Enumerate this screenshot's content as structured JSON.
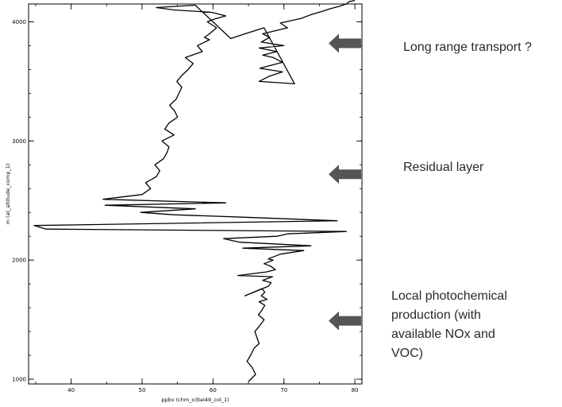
{
  "chart_data": {
    "type": "line",
    "xlabel": "ppbv (chm_o3tei49_col_1)",
    "ylabel": "m (at_altitude_comp_1)",
    "xlim": [
      34,
      81
    ],
    "ylim": [
      960,
      4150
    ],
    "x_ticks": [
      "40",
      "50",
      "60",
      "70",
      "80"
    ],
    "y_ticks": [
      "1000",
      "2000",
      "3000",
      "4000"
    ],
    "line_color": "#000000",
    "series": [
      {
        "x": [
          65,
          66,
          65.5,
          64.8,
          65.3,
          65.8,
          66.5,
          66.2,
          65.9,
          66.6,
          67.2,
          66.4,
          66.9,
          67.3,
          66.5,
          67.6,
          66.8,
          67.3,
          66.9,
          64.5,
          67.8,
          68.2,
          67.0,
          68.4,
          63.5,
          67.5,
          68.8,
          68.1,
          67.2,
          68.5,
          67.8,
          69.5,
          72.8,
          64.2,
          73.8,
          63.8,
          61.5,
          69.0,
          70.5,
          78.8,
          36.5,
          34.8,
          77.5,
          64.2,
          54.5,
          49.8,
          57.5,
          44.8,
          61.8,
          44.5,
          50.0,
          51.2,
          50.5,
          52.0,
          52.5,
          51.8,
          53.0,
          53.5,
          53.8,
          52.8,
          54.5,
          53.2,
          53.8,
          55.0,
          54.6,
          53.9,
          54.8,
          55.2,
          55.6,
          54.9,
          55.6,
          56.5,
          57.2,
          56.1,
          58.5,
          57.8,
          59.5,
          58.8,
          59.5,
          60.5,
          59.2,
          60.0,
          61.8,
          59.8,
          54.5,
          52.0,
          57.5,
          62.5,
          64.5,
          67.2,
          71.5,
          66.5,
          67.8,
          69.8,
          66.6,
          69.8,
          68.5,
          67.0,
          69.0,
          66.5,
          70.0,
          66.8,
          68.0,
          67.0,
          70.5,
          69.5,
          72.5,
          73.8,
          75.5,
          76.5,
          77.8,
          78.8,
          79.0,
          79.2,
          80.0
        ],
        "y": [
          980,
          1040,
          1100,
          1150,
          1200,
          1260,
          1300,
          1350,
          1400,
          1450,
          1500,
          1540,
          1580,
          1620,
          1650,
          1670,
          1700,
          1730,
          1760,
          1700,
          1780,
          1810,
          1830,
          1860,
          1870,
          1900,
          1920,
          1950,
          1970,
          2000,
          2010,
          2050,
          2080,
          2100,
          2120,
          2150,
          2180,
          2200,
          2220,
          2240,
          2260,
          2290,
          2330,
          2360,
          2380,
          2400,
          2430,
          2460,
          2480,
          2510,
          2550,
          2600,
          2650,
          2700,
          2750,
          2800,
          2850,
          2900,
          2950,
          3000,
          3050,
          3100,
          3150,
          3200,
          3250,
          3300,
          3350,
          3400,
          3450,
          3500,
          3550,
          3600,
          3650,
          3700,
          3750,
          3800,
          3850,
          3870,
          3900,
          3950,
          4000,
          4020,
          4050,
          4080,
          4100,
          4120,
          4140,
          3860,
          3900,
          3950,
          3480,
          3500,
          3540,
          3580,
          3610,
          3660,
          3700,
          3720,
          3750,
          3780,
          3800,
          3830,
          3870,
          3900,
          3950,
          3990,
          4030,
          4060,
          4090,
          4110,
          4130,
          4150,
          4160,
          4170,
          4180
        ]
      }
    ],
    "arrows": [
      {
        "y": 3820
      },
      {
        "y": 2720
      },
      {
        "y": 1490
      }
    ],
    "arrow_color": "#555555"
  },
  "annotations": {
    "long_range": "Long range transport ?",
    "residual": "Residual layer",
    "local": "Local photochemical\nproduction (with\navailable NOx and\nVOC)"
  }
}
